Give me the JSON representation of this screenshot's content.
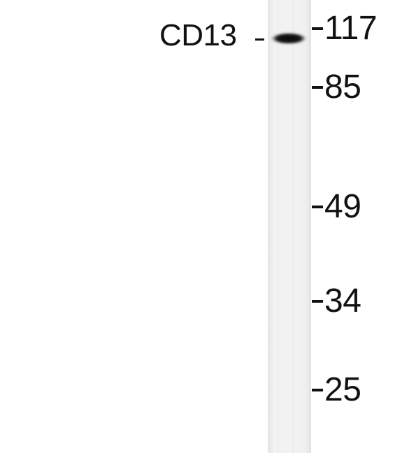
{
  "band": {
    "label": "CD13"
  },
  "markers": [
    {
      "id": "117",
      "label": "117"
    },
    {
      "id": "85",
      "label": "85"
    },
    {
      "id": "49",
      "label": "49"
    },
    {
      "id": "34",
      "label": "34"
    },
    {
      "id": "25",
      "label": "25"
    }
  ],
  "colors": {
    "lane": "#efefef",
    "band": "#1a1a1a",
    "text": "#111111",
    "background": "#ffffff"
  }
}
